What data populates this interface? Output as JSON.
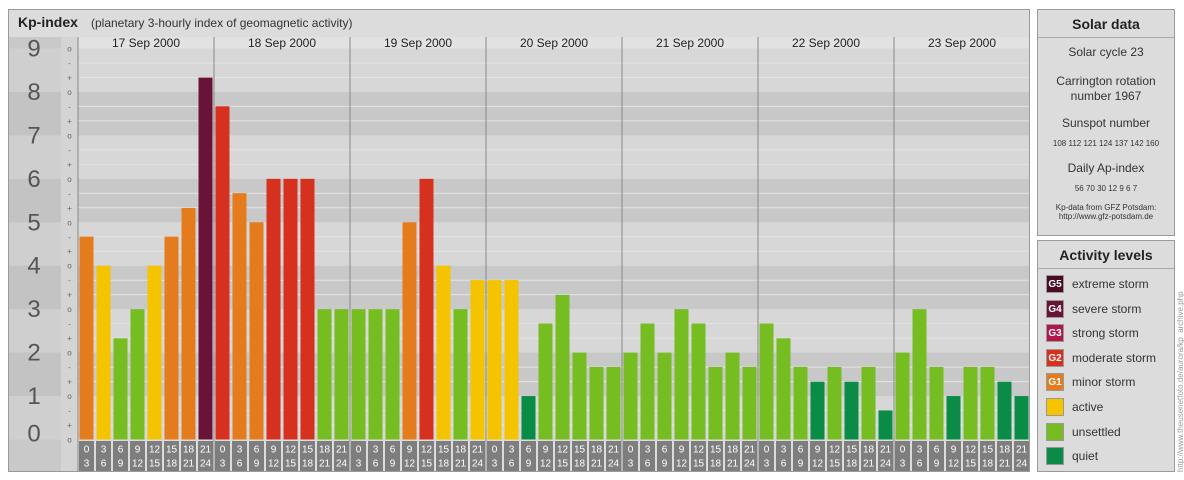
{
  "header": {
    "title": "Kp-index",
    "subtitle": "(planetary 3-hourly index of geomagnetic activity)"
  },
  "colors": {
    "quiet": "#0a8c46",
    "unsettled": "#76bd22",
    "active": "#f5c400",
    "minor_storm": "#e47b1c",
    "moderate_storm": "#d6301f",
    "strong_storm": "#b3164d",
    "severe_storm": "#6a1338",
    "extreme_storm": "#4a0b24"
  },
  "chart_data": {
    "type": "bar",
    "ylabel_ticks": [
      "0",
      "1",
      "2",
      "3",
      "4",
      "5",
      "6",
      "7",
      "8",
      "9"
    ],
    "minor_ticks": [
      "-",
      "o",
      "+"
    ],
    "ylim": [
      0,
      9
    ],
    "days": [
      "17 Sep 2000",
      "18 Sep 2000",
      "19 Sep 2000",
      "20 Sep 2000",
      "21 Sep 2000",
      "22 Sep 2000",
      "23 Sep 2000"
    ],
    "interval_top_labels": [
      "0",
      "3",
      "6",
      "9",
      "12",
      "15",
      "18",
      "21"
    ],
    "interval_bottom_labels": [
      "3",
      "6",
      "9",
      "12",
      "15",
      "18",
      "21",
      "24"
    ],
    "values": [
      [
        4.67,
        4.0,
        2.33,
        3.0,
        4.0,
        4.67,
        5.33,
        8.33
      ],
      [
        7.67,
        5.67,
        5.0,
        6.0,
        6.0,
        6.0,
        3.0,
        3.0
      ],
      [
        3.0,
        3.0,
        3.0,
        5.0,
        6.0,
        4.0,
        3.0,
        3.67
      ],
      [
        3.67,
        3.67,
        1.0,
        2.67,
        3.33,
        2.0,
        1.67,
        1.67
      ],
      [
        2.0,
        2.67,
        2.0,
        3.0,
        2.67,
        1.67,
        2.0,
        1.67
      ],
      [
        2.67,
        2.33,
        1.67,
        1.33,
        1.67,
        1.33,
        1.67,
        0.67
      ],
      [
        2.0,
        3.0,
        1.67,
        1.0,
        1.67,
        1.67,
        1.33,
        1.0
      ]
    ]
  },
  "solar": {
    "title": "Solar data",
    "cycle": "Solar cycle 23",
    "carrington_line1": "Carrington rotation",
    "carrington_line2": "number 1967",
    "sunspot_title": "Sunspot number",
    "sunspots": "108 112 121 124 137 142 160",
    "ap_title": "Daily Ap-index",
    "ap_values": "56  70  30  12  9  6  7",
    "source_line1": "Kp-data from GFZ Potsdam:",
    "source_line2": "http://www.gfz-potsdam.de"
  },
  "activity": {
    "title": "Activity levels",
    "items": [
      {
        "badge": "G5",
        "label": "extreme storm",
        "color": "#4a0b24"
      },
      {
        "badge": "G4",
        "label": "severe storm",
        "color": "#6a1338"
      },
      {
        "badge": "G3",
        "label": "strong storm",
        "color": "#b3164d"
      },
      {
        "badge": "G2",
        "label": "moderate storm",
        "color": "#d6301f"
      },
      {
        "badge": "G1",
        "label": "minor storm",
        "color": "#e47b1c"
      },
      {
        "badge": "",
        "label": "active",
        "color": "#f5c400"
      },
      {
        "badge": "",
        "label": "unsettled",
        "color": "#76bd22"
      },
      {
        "badge": "",
        "label": "quiet",
        "color": "#0a8c46"
      }
    ]
  },
  "credit": "http://www.theusenetfoto.de/aurora/kp_archive.php"
}
